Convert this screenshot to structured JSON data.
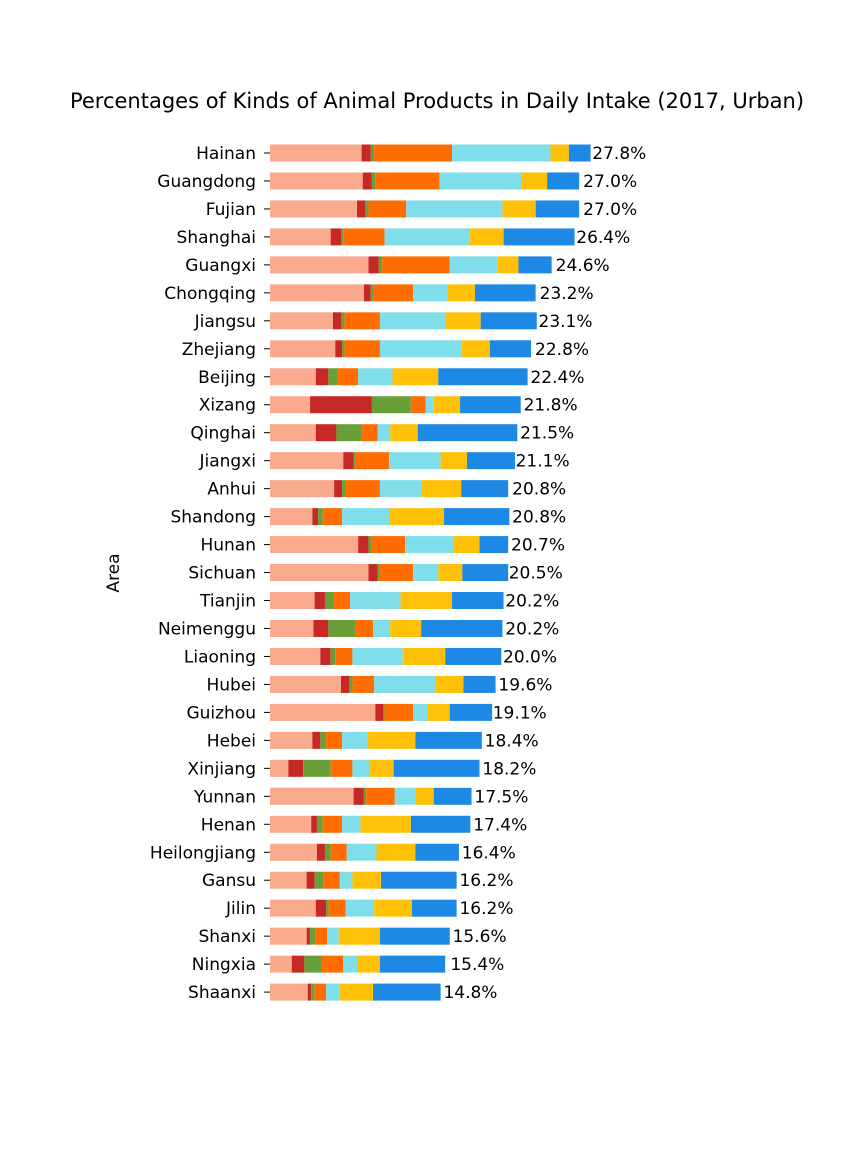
{
  "chart_data": {
    "type": "bar",
    "orientation": "horizontal",
    "stacked": true,
    "title": "Percentages of Kinds of Animal Products in Daily Intake (2017, Urban)",
    "xlabel": "",
    "ylabel": "Area",
    "grid": false,
    "legend": "none",
    "value_format": "{v}%",
    "categories": [
      "Hainan",
      "Guangdong",
      "Fujian",
      "Shanghai",
      "Guangxi",
      "Chongqing",
      "Jiangsu",
      "Zhejiang",
      "Beijing",
      "Xizang",
      "Qinghai",
      "Jiangxi",
      "Anhui",
      "Shandong",
      "Hunan",
      "Sichuan",
      "Tianjin",
      "Neimenggu",
      "Liaoning",
      "Hubei",
      "Guizhou",
      "Hebei",
      "Xinjiang",
      "Yunnan",
      "Henan",
      "Heilongjiang",
      "Gansu",
      "Jilin",
      "Shanxi",
      "Ningxia",
      "Shaanxi"
    ],
    "totals": [
      27.8,
      27.0,
      27.0,
      26.4,
      24.6,
      23.2,
      23.1,
      22.8,
      22.4,
      21.8,
      21.5,
      21.1,
      20.8,
      20.8,
      20.7,
      20.5,
      20.2,
      20.2,
      20.0,
      19.6,
      19.1,
      18.4,
      18.2,
      17.5,
      17.4,
      16.4,
      16.2,
      16.2,
      15.6,
      15.4,
      14.8
    ],
    "series": [
      {
        "color": "#f9a98c",
        "values": [
          8.0,
          8.1,
          7.6,
          5.3,
          8.6,
          8.2,
          5.5,
          5.7,
          4.0,
          3.5,
          4.0,
          6.4,
          5.6,
          3.7,
          7.7,
          8.6,
          3.9,
          3.8,
          4.4,
          6.2,
          9.2,
          3.7,
          1.6,
          7.3,
          3.6,
          4.1,
          3.2,
          4.0,
          3.2,
          1.9,
          3.3
        ]
      },
      {
        "color": "#c62828",
        "values": [
          0.8,
          0.8,
          0.7,
          0.9,
          0.9,
          0.6,
          0.7,
          0.6,
          1.1,
          5.4,
          1.8,
          0.9,
          0.7,
          0.5,
          0.9,
          0.8,
          0.9,
          1.3,
          0.9,
          0.7,
          0.7,
          0.7,
          1.3,
          0.9,
          0.5,
          0.7,
          0.7,
          0.9,
          0.3,
          1.1,
          0.3
        ]
      },
      {
        "color": "#689f38",
        "values": [
          0.3,
          0.3,
          0.3,
          0.2,
          0.3,
          0.2,
          0.3,
          0.2,
          0.8,
          3.4,
          2.2,
          0.2,
          0.3,
          0.4,
          0.3,
          0.2,
          0.8,
          2.4,
          0.4,
          0.3,
          0.1,
          0.5,
          2.4,
          0.2,
          0.5,
          0.5,
          0.8,
          0.2,
          0.5,
          1.5,
          0.3
        ]
      },
      {
        "color": "#ff6d00",
        "values": [
          6.8,
          5.6,
          3.3,
          3.6,
          5.9,
          3.5,
          3.1,
          3.1,
          1.8,
          1.3,
          1.4,
          2.9,
          3.0,
          1.7,
          2.9,
          2.9,
          1.4,
          1.5,
          1.5,
          1.9,
          2.5,
          1.4,
          1.9,
          2.5,
          1.7,
          1.4,
          1.4,
          1.5,
          1.0,
          1.9,
          1.0
        ]
      },
      {
        "color": "#80deea",
        "values": [
          8.6,
          7.2,
          8.4,
          7.4,
          4.2,
          3.0,
          5.7,
          7.1,
          3.0,
          0.7,
          1.1,
          4.5,
          3.6,
          4.1,
          4.2,
          2.2,
          4.4,
          1.5,
          4.4,
          5.4,
          1.3,
          2.2,
          1.5,
          1.8,
          1.6,
          2.6,
          1.1,
          2.5,
          1.0,
          1.2,
          1.2
        ]
      },
      {
        "color": "#ffc107",
        "values": [
          1.6,
          2.2,
          2.9,
          3.0,
          1.8,
          2.4,
          3.1,
          2.5,
          4.0,
          2.3,
          2.4,
          2.3,
          3.5,
          4.8,
          2.3,
          2.1,
          4.5,
          2.7,
          3.7,
          2.4,
          1.9,
          4.2,
          2.1,
          1.6,
          4.4,
          3.4,
          2.5,
          3.3,
          3.6,
          2.0,
          2.9
        ]
      },
      {
        "color": "#1e88e5",
        "values": [
          1.9,
          2.8,
          3.8,
          6.2,
          2.9,
          5.3,
          4.9,
          3.6,
          7.8,
          5.3,
          8.7,
          4.2,
          4.1,
          5.7,
          2.5,
          4.0,
          4.5,
          7.1,
          4.9,
          2.8,
          3.7,
          5.8,
          7.5,
          3.3,
          5.2,
          3.8,
          6.6,
          3.9,
          6.1,
          5.7,
          5.9
        ]
      }
    ]
  }
}
